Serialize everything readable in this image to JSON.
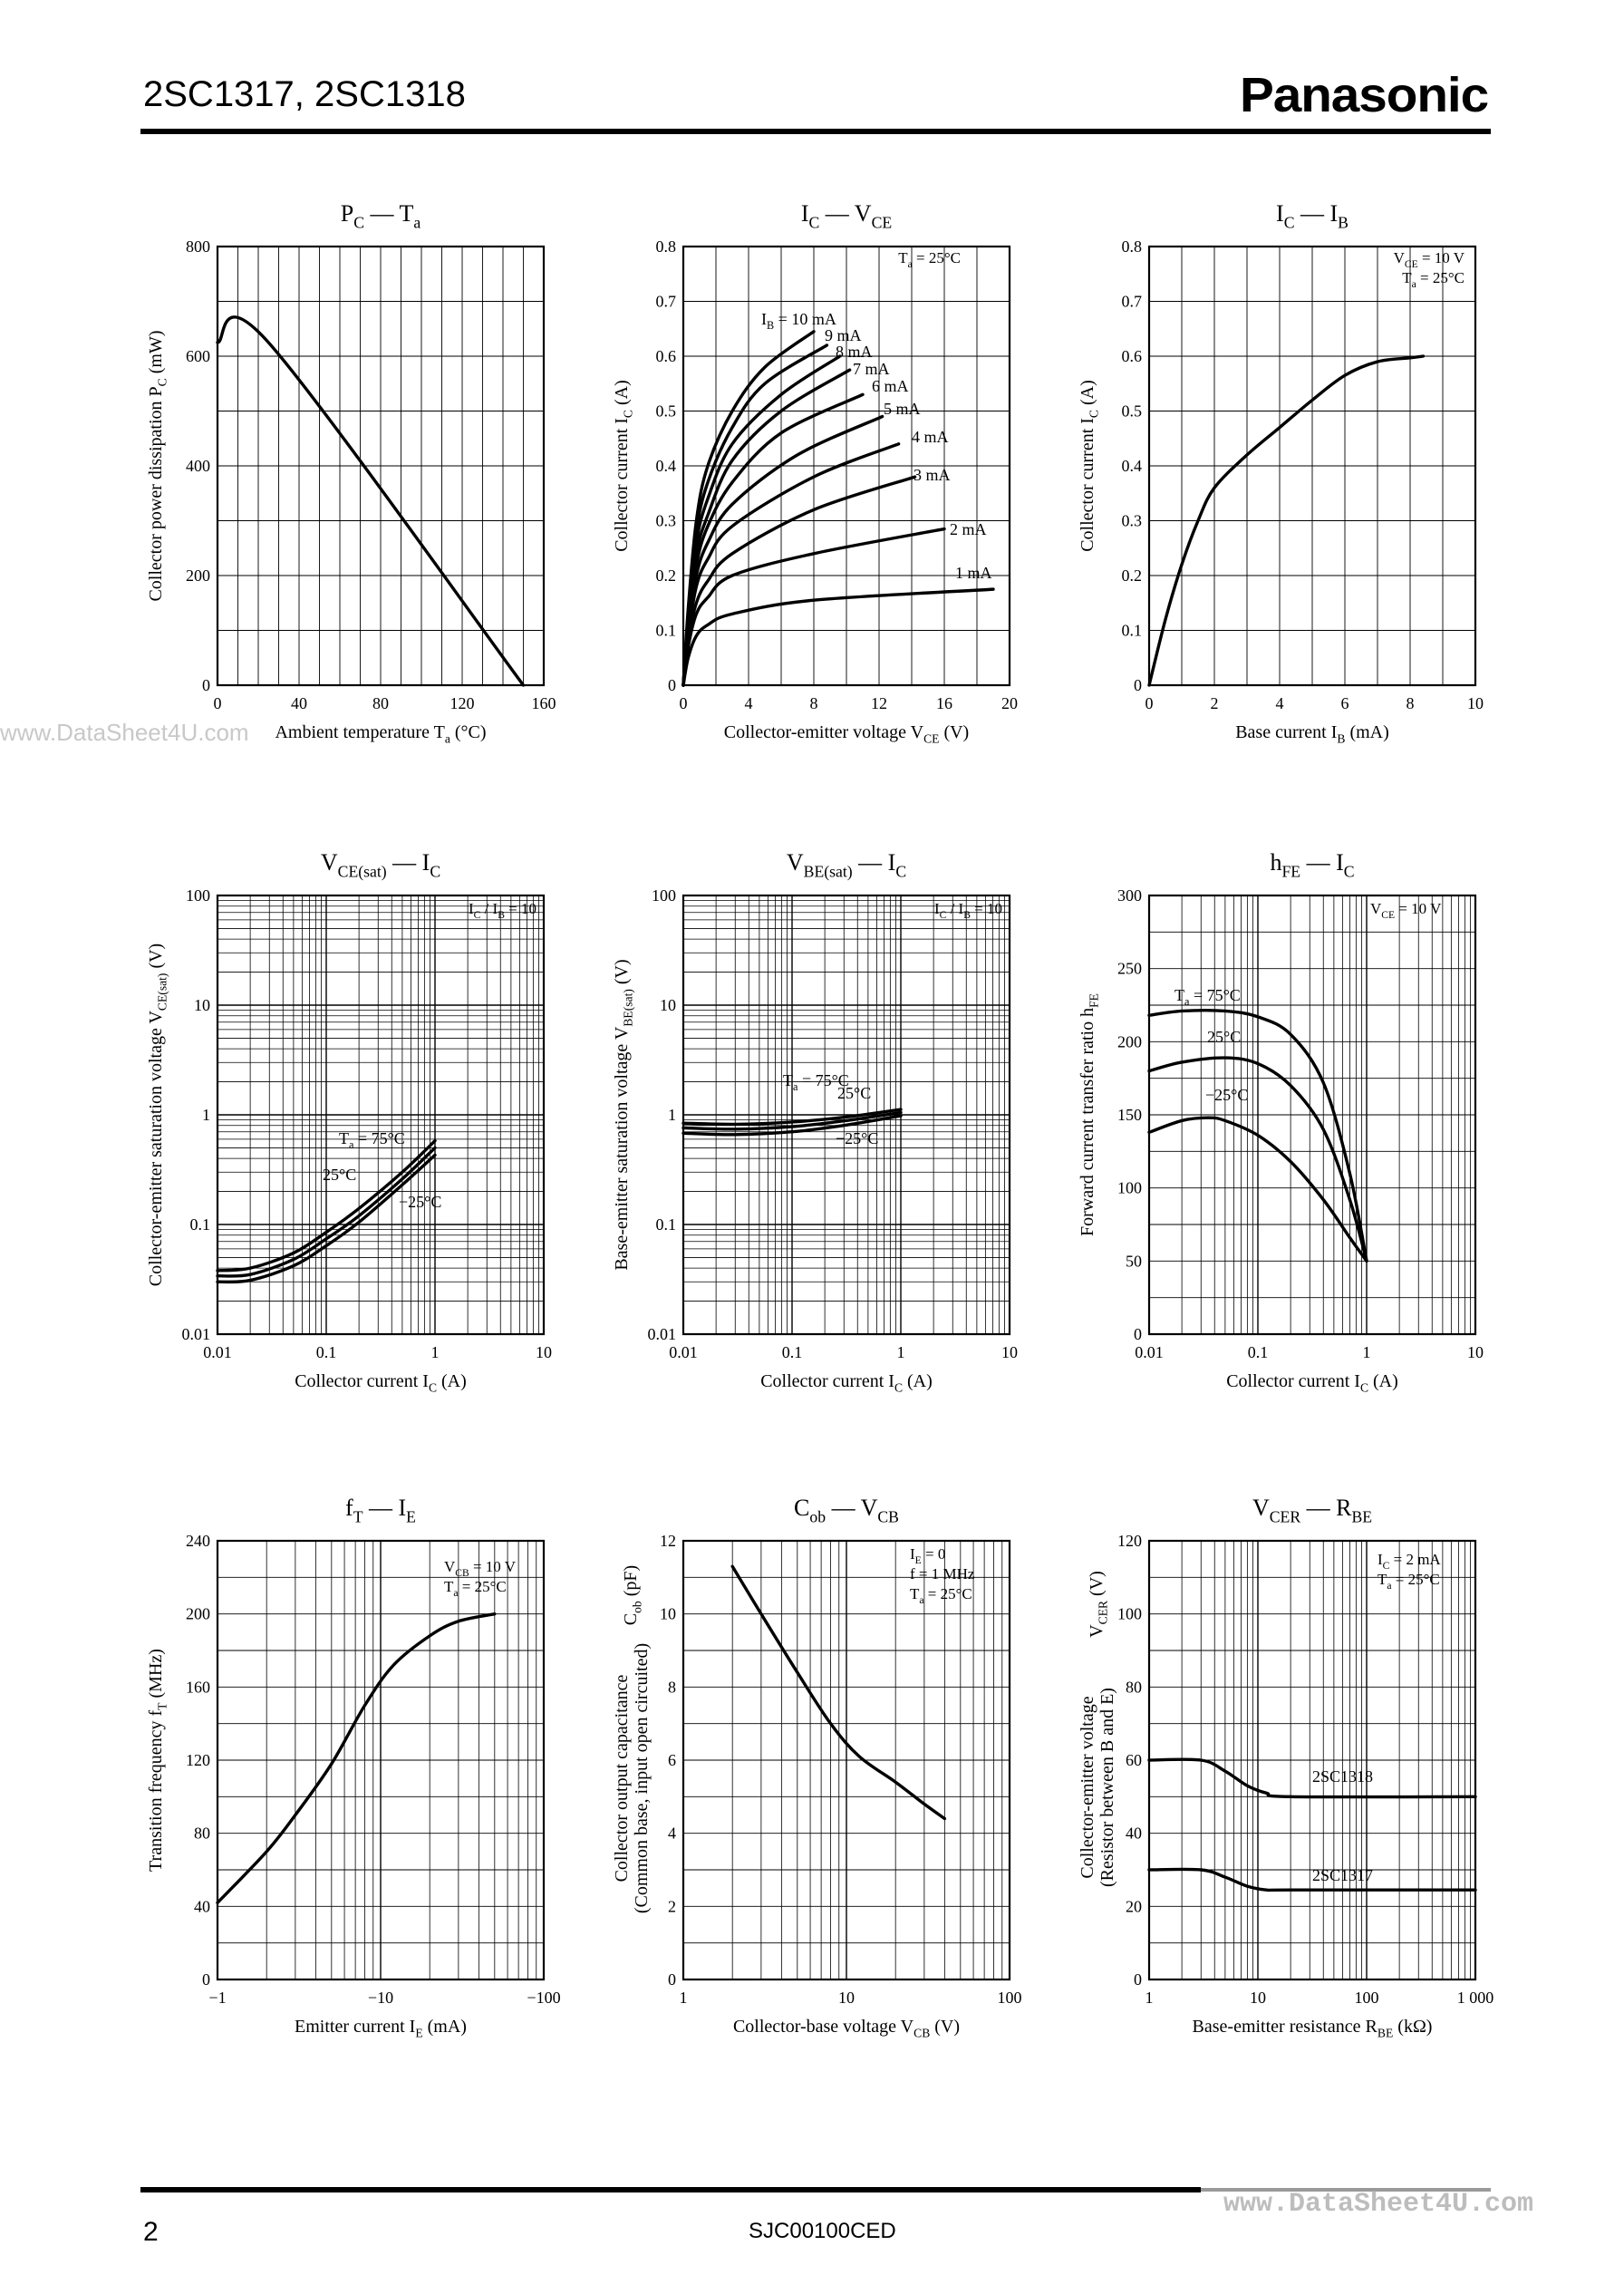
{
  "header": {
    "title": "2SC1317, 2SC1318",
    "brand": "Panasonic"
  },
  "footer": {
    "page": "2",
    "doc_code": "SJC00100CED"
  },
  "watermarks": {
    "left": "www.DataSheet4U.com",
    "bottom": "www.DataSheet4U.com"
  },
  "chart_data": [
    {
      "id": "pc-ta",
      "type": "line",
      "title": "P_C — T_a",
      "xlabel": "Ambient temperature T_a (°C)",
      "ylabel": "Collector power dissipation P_C (mW)",
      "xscale": "linear",
      "yscale": "linear",
      "xlim": [
        0,
        160
      ],
      "ylim": [
        0,
        800
      ],
      "xticks": [
        0,
        40,
        80,
        120,
        160
      ],
      "yticks": [
        0,
        200,
        400,
        600,
        800
      ],
      "grid": "x every 10, y every 100",
      "series": [
        {
          "points": [
            [
              0,
              625
            ],
            [
              25,
              625
            ],
            [
              150,
              0
            ]
          ]
        }
      ]
    },
    {
      "id": "ic-vce",
      "type": "line",
      "title": "I_C — V_CE",
      "xlabel": "Collector-emitter voltage V_CE (V)",
      "ylabel": "Collector current I_C (A)",
      "xscale": "linear",
      "yscale": "linear",
      "xlim": [
        0,
        20
      ],
      "ylim": [
        0,
        0.8
      ],
      "xticks": [
        0,
        4,
        8,
        12,
        16,
        20
      ],
      "yticks": [
        0,
        0.1,
        0.2,
        0.3,
        0.4,
        0.5,
        0.6,
        0.7,
        0.8
      ],
      "grid": "x every 2, y every 0.1",
      "annotations": [
        "T_a = 25°C"
      ],
      "series": [
        {
          "name": "I_B = 10 mA",
          "points": [
            [
              0,
              0
            ],
            [
              0.3,
              0.14
            ],
            [
              0.8,
              0.3
            ],
            [
              1.5,
              0.4
            ],
            [
              3,
              0.5
            ],
            [
              5,
              0.58
            ],
            [
              8,
              0.645
            ]
          ]
        },
        {
          "name": "9 mA",
          "points": [
            [
              0,
              0
            ],
            [
              0.3,
              0.13
            ],
            [
              0.8,
              0.28
            ],
            [
              1.5,
              0.37
            ],
            [
              3,
              0.47
            ],
            [
              5,
              0.55
            ],
            [
              8.8,
              0.62
            ]
          ]
        },
        {
          "name": "8 mA",
          "points": [
            [
              0,
              0
            ],
            [
              0.3,
              0.12
            ],
            [
              0.8,
              0.26
            ],
            [
              1.5,
              0.34
            ],
            [
              3,
              0.44
            ],
            [
              6,
              0.53
            ],
            [
              9.6,
              0.6
            ]
          ]
        },
        {
          "name": "7 mA",
          "points": [
            [
              0,
              0
            ],
            [
              0.3,
              0.115
            ],
            [
              0.8,
              0.24
            ],
            [
              1.5,
              0.31
            ],
            [
              3,
              0.41
            ],
            [
              6,
              0.5
            ],
            [
              10.2,
              0.575
            ]
          ]
        },
        {
          "name": "6 mA",
          "points": [
            [
              0,
              0
            ],
            [
              0.3,
              0.11
            ],
            [
              0.8,
              0.22
            ],
            [
              1.5,
              0.29
            ],
            [
              3,
              0.37
            ],
            [
              6,
              0.46
            ],
            [
              11,
              0.53
            ]
          ]
        },
        {
          "name": "5 mA",
          "points": [
            [
              0,
              0
            ],
            [
              0.3,
              0.1
            ],
            [
              0.8,
              0.2
            ],
            [
              1.5,
              0.26
            ],
            [
              3,
              0.33
            ],
            [
              7,
              0.42
            ],
            [
              12.2,
              0.49
            ]
          ]
        },
        {
          "name": "4 mA",
          "points": [
            [
              0,
              0
            ],
            [
              0.3,
              0.09
            ],
            [
              0.8,
              0.18
            ],
            [
              1.5,
              0.23
            ],
            [
              3,
              0.29
            ],
            [
              8,
              0.38
            ],
            [
              13.2,
              0.44
            ]
          ]
        },
        {
          "name": "3 mA",
          "points": [
            [
              0,
              0
            ],
            [
              0.3,
              0.08
            ],
            [
              0.8,
              0.15
            ],
            [
              1.5,
              0.19
            ],
            [
              3,
              0.24
            ],
            [
              8,
              0.32
            ],
            [
              14.2,
              0.38
            ]
          ]
        },
        {
          "name": "2 mA",
          "points": [
            [
              0,
              0
            ],
            [
              0.3,
              0.07
            ],
            [
              0.8,
              0.13
            ],
            [
              1.5,
              0.16
            ],
            [
              3,
              0.2
            ],
            [
              8,
              0.24
            ],
            [
              16,
              0.285
            ]
          ]
        },
        {
          "name": "1 mA",
          "points": [
            [
              0,
              0
            ],
            [
              0.3,
              0.05
            ],
            [
              0.8,
              0.09
            ],
            [
              1.5,
              0.11
            ],
            [
              3,
              0.13
            ],
            [
              8,
              0.155
            ],
            [
              19,
              0.175
            ]
          ]
        }
      ]
    },
    {
      "id": "ic-ib",
      "type": "line",
      "title": "I_C — I_B",
      "xlabel": "Base current I_B (mA)",
      "ylabel": "Collector current I_C (A)",
      "xscale": "linear",
      "yscale": "linear",
      "xlim": [
        0,
        10
      ],
      "ylim": [
        0,
        0.8
      ],
      "xticks": [
        0,
        2,
        4,
        6,
        8,
        10
      ],
      "yticks": [
        0,
        0.1,
        0.2,
        0.3,
        0.4,
        0.5,
        0.6,
        0.7,
        0.8
      ],
      "grid": "x every 1, y every 0.1",
      "annotations": [
        "V_CE = 10 V",
        "T_a = 25°C"
      ],
      "series": [
        {
          "points": [
            [
              0,
              0
            ],
            [
              0.5,
              0.12
            ],
            [
              1,
              0.22
            ],
            [
              1.5,
              0.3
            ],
            [
              2,
              0.36
            ],
            [
              3,
              0.42
            ],
            [
              4,
              0.47
            ],
            [
              5,
              0.52
            ],
            [
              6,
              0.565
            ],
            [
              7,
              0.59
            ],
            [
              8,
              0.597
            ],
            [
              8.4,
              0.6
            ]
          ]
        }
      ]
    },
    {
      "id": "vcesat-ic",
      "type": "line",
      "title": "V_CE(sat) — I_C",
      "xlabel": "Collector current I_C (A)",
      "ylabel": "Collector-emitter saturation voltage V_CE(sat) (V)",
      "xscale": "log",
      "yscale": "log",
      "xlim": [
        0.01,
        10
      ],
      "ylim": [
        0.01,
        100
      ],
      "xticks": [
        0.01,
        0.1,
        1,
        10
      ],
      "yticks": [
        0.01,
        0.1,
        1,
        10,
        100
      ],
      "annotations": [
        "I_C / I_B = 10"
      ],
      "series": [
        {
          "name": "T_a = 75°C",
          "points": [
            [
              0.01,
              0.038
            ],
            [
              0.02,
              0.04
            ],
            [
              0.05,
              0.055
            ],
            [
              0.1,
              0.085
            ],
            [
              0.2,
              0.14
            ],
            [
              0.5,
              0.3
            ],
            [
              1,
              0.58
            ]
          ]
        },
        {
          "name": "25°C",
          "points": [
            [
              0.01,
              0.034
            ],
            [
              0.02,
              0.035
            ],
            [
              0.05,
              0.048
            ],
            [
              0.1,
              0.074
            ],
            [
              0.2,
              0.12
            ],
            [
              0.5,
              0.26
            ],
            [
              1,
              0.5
            ]
          ]
        },
        {
          "name": "−25°C",
          "points": [
            [
              0.01,
              0.03
            ],
            [
              0.02,
              0.031
            ],
            [
              0.05,
              0.042
            ],
            [
              0.1,
              0.064
            ],
            [
              0.2,
              0.105
            ],
            [
              0.5,
              0.23
            ],
            [
              1,
              0.43
            ]
          ]
        }
      ]
    },
    {
      "id": "vbesat-ic",
      "type": "line",
      "title": "V_BE(sat) — I_C",
      "xlabel": "Collector current I_C (A)",
      "ylabel": "Base-emitter saturation voltage V_BE(sat) (V)",
      "xscale": "log",
      "yscale": "log",
      "xlim": [
        0.01,
        10
      ],
      "ylim": [
        0.01,
        100
      ],
      "xticks": [
        0.01,
        0.1,
        1,
        10
      ],
      "yticks": [
        0.01,
        0.1,
        1,
        10,
        100
      ],
      "annotations": [
        "I_C / I_B = 10"
      ],
      "series": [
        {
          "name": "T_a = 75°C",
          "points": [
            [
              0.01,
              0.68
            ],
            [
              0.03,
              0.66
            ],
            [
              0.1,
              0.7
            ],
            [
              0.3,
              0.8
            ],
            [
              1,
              0.98
            ]
          ]
        },
        {
          "name": "25°C",
          "points": [
            [
              0.01,
              0.76
            ],
            [
              0.03,
              0.74
            ],
            [
              0.1,
              0.78
            ],
            [
              0.3,
              0.88
            ],
            [
              1,
              1.05
            ]
          ]
        },
        {
          "name": "−25°C",
          "points": [
            [
              0.01,
              0.84
            ],
            [
              0.03,
              0.82
            ],
            [
              0.1,
              0.86
            ],
            [
              0.3,
              0.95
            ],
            [
              1,
              1.12
            ]
          ]
        }
      ]
    },
    {
      "id": "hfe-ic",
      "type": "line",
      "title": "h_FE — I_C",
      "xlabel": "Collector current I_C (A)",
      "ylabel": "Forward current transfer ratio h_FE",
      "xscale": "log",
      "yscale": "linear",
      "xlim": [
        0.01,
        10
      ],
      "ylim": [
        0,
        300
      ],
      "xticks": [
        0.01,
        0.1,
        1,
        10
      ],
      "yticks": [
        0,
        50,
        100,
        150,
        200,
        250,
        300
      ],
      "annotations": [
        "V_CE = 10 V"
      ],
      "series": [
        {
          "name": "T_a = 75°C",
          "points": [
            [
              0.01,
              218
            ],
            [
              0.02,
              221
            ],
            [
              0.05,
              221
            ],
            [
              0.1,
              217
            ],
            [
              0.2,
              205
            ],
            [
              0.4,
              172
            ],
            [
              0.7,
              110
            ],
            [
              1,
              50
            ]
          ]
        },
        {
          "name": "25°C",
          "points": [
            [
              0.01,
              180
            ],
            [
              0.02,
              186
            ],
            [
              0.05,
              189
            ],
            [
              0.1,
              185
            ],
            [
              0.2,
              170
            ],
            [
              0.4,
              140
            ],
            [
              0.7,
              92
            ],
            [
              1,
              50
            ]
          ]
        },
        {
          "name": "−25°C",
          "points": [
            [
              0.01,
              138
            ],
            [
              0.02,
              146
            ],
            [
              0.035,
              148
            ],
            [
              0.05,
              146
            ],
            [
              0.1,
              136
            ],
            [
              0.2,
              118
            ],
            [
              0.4,
              92
            ],
            [
              0.7,
              66
            ],
            [
              1,
              50
            ]
          ]
        }
      ]
    },
    {
      "id": "ft-ie",
      "type": "line",
      "title": "f_T — I_E",
      "xlabel": "Emitter current I_E (mA)",
      "ylabel": "Transition frequency f_T (MHz)",
      "xscale": "log",
      "yscale": "linear",
      "xlim": [
        -1,
        -100
      ],
      "ylim": [
        0,
        240
      ],
      "xticks": [
        -1,
        -10,
        -100
      ],
      "yticks": [
        0,
        40,
        80,
        120,
        160,
        200,
        240
      ],
      "annotations": [
        "V_CB = 10 V",
        "T_a = 25°C"
      ],
      "series": [
        {
          "points": [
            [
              -1,
              42
            ],
            [
              -2,
              70
            ],
            [
              -3,
              90
            ],
            [
              -5,
              118
            ],
            [
              -8,
              150
            ],
            [
              -12,
              172
            ],
            [
              -20,
              188
            ],
            [
              -30,
              196
            ],
            [
              -50,
              200
            ]
          ]
        }
      ]
    },
    {
      "id": "cob-vcb",
      "type": "line",
      "title": "C_ob — V_CB",
      "xlabel": "Collector-base voltage V_CB (V)",
      "ylabel": "Collector output capacitance (Common base, input open circuited) C_ob (pF)",
      "xscale": "log",
      "yscale": "linear",
      "xlim": [
        1,
        100
      ],
      "ylim": [
        0,
        12
      ],
      "xticks": [
        1,
        10,
        100
      ],
      "yticks": [
        0,
        2,
        4,
        6,
        8,
        10,
        12
      ],
      "annotations": [
        "I_E = 0",
        "f = 1 MHz",
        "T_a = 25°C"
      ],
      "series": [
        {
          "points": [
            [
              2,
              11.3
            ],
            [
              3,
              10
            ],
            [
              5,
              8.4
            ],
            [
              8,
              7
            ],
            [
              12,
              6.1
            ],
            [
              20,
              5.4
            ],
            [
              30,
              4.8
            ],
            [
              40,
              4.4
            ]
          ]
        }
      ]
    },
    {
      "id": "vcer-rbe",
      "type": "line",
      "title": "V_CER — R_BE",
      "xlabel": "Base-emitter resistance R_BE (kΩ)",
      "ylabel": "Collector-emitter voltage (Resistor between B and E) V_CER (V)",
      "xscale": "log",
      "yscale": "linear",
      "xlim": [
        1,
        1000
      ],
      "ylim": [
        0,
        120
      ],
      "xticks": [
        1,
        10,
        100,
        1000
      ],
      "xticklabels": [
        "1",
        "10",
        "100",
        "1 000"
      ],
      "yticks": [
        0,
        20,
        40,
        60,
        80,
        100,
        120
      ],
      "annotations": [
        "I_C = 2 mA",
        "T_a = 25°C"
      ],
      "series": [
        {
          "name": "2SC1318",
          "points": [
            [
              1,
              60
            ],
            [
              3,
              60
            ],
            [
              5,
              57
            ],
            [
              8,
              53
            ],
            [
              12,
              51
            ],
            [
              20,
              50
            ],
            [
              1000,
              50
            ]
          ]
        },
        {
          "name": "2SC1317",
          "points": [
            [
              1,
              30
            ],
            [
              3,
              30
            ],
            [
              5,
              28
            ],
            [
              8,
              25.5
            ],
            [
              12,
              24.5
            ],
            [
              20,
              24.5
            ],
            [
              1000,
              24.5
            ]
          ]
        }
      ]
    }
  ]
}
